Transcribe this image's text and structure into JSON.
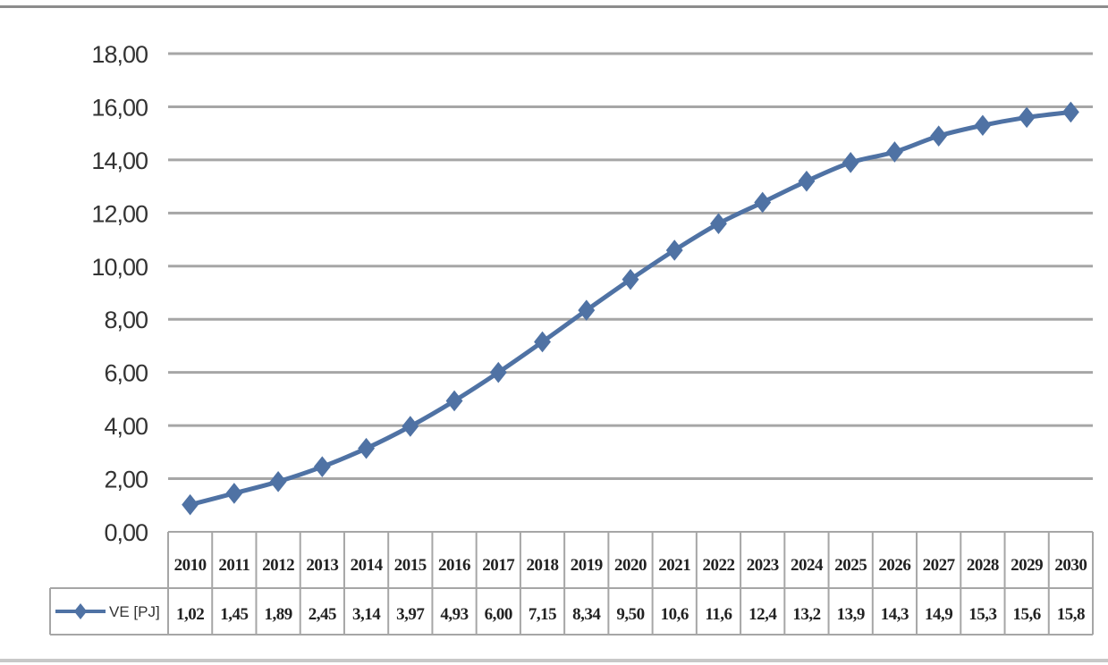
{
  "chart_data": {
    "type": "line",
    "categories": [
      "2010",
      "2011",
      "2012",
      "2013",
      "2014",
      "2015",
      "2016",
      "2017",
      "2018",
      "2019",
      "2020",
      "2021",
      "2022",
      "2023",
      "2024",
      "2025",
      "2026",
      "2027",
      "2028",
      "2029",
      "2030"
    ],
    "series": [
      {
        "name": "VE [PJ]",
        "values": [
          1.02,
          1.45,
          1.89,
          2.45,
          3.14,
          3.97,
          4.93,
          6.0,
          7.15,
          8.34,
          9.5,
          10.6,
          11.6,
          12.4,
          13.2,
          13.9,
          14.3,
          14.9,
          15.3,
          15.6,
          15.8
        ],
        "color": "#4f72a4"
      }
    ],
    "table_values": [
      "1,02",
      "1,45",
      "1,89",
      "2,45",
      "3,14",
      "3,97",
      "4,93",
      "6,00",
      "7,15",
      "8,34",
      "9,50",
      "10,6",
      "11,6",
      "12,4",
      "13,2",
      "13,9",
      "14,3",
      "14,9",
      "15,3",
      "15,6",
      "15,8"
    ],
    "y_tick_labels": [
      "0,00",
      "2,00",
      "4,00",
      "6,00",
      "8,00",
      "10,00",
      "12,00",
      "14,00",
      "16,00",
      "18,00"
    ],
    "ylim": [
      0,
      18
    ],
    "y_tick_step": 2,
    "grid": "horizontal",
    "legend_placement": "data-table",
    "title": "",
    "xlabel": "",
    "ylabel": ""
  }
}
